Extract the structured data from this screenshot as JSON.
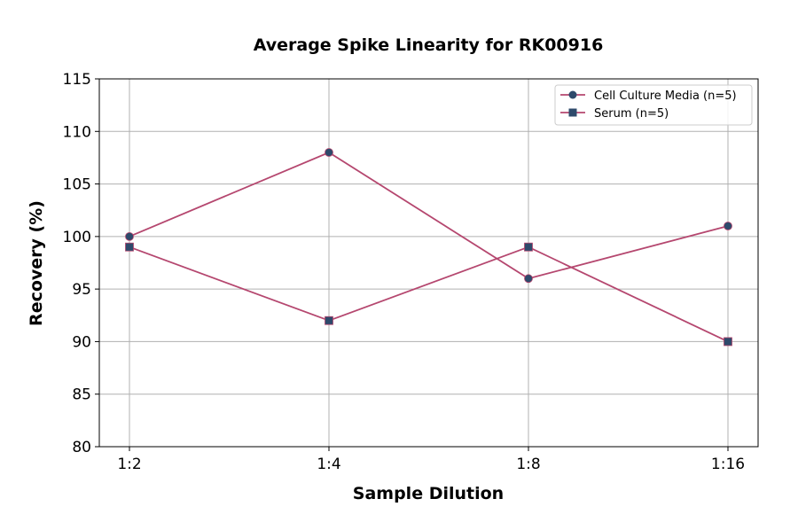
{
  "chart_data": {
    "type": "line",
    "title": "Average Spike Linearity for RK00916",
    "xlabel": "Sample Dilution",
    "ylabel": "Recovery (%)",
    "categories": [
      "1:2",
      "1:4",
      "1:8",
      "1:16"
    ],
    "ylim": [
      80,
      115
    ],
    "yticks": [
      80,
      85,
      90,
      95,
      100,
      105,
      110,
      115
    ],
    "grid": true,
    "legend_position": "top-right",
    "series": [
      {
        "name": "Cell Culture Media (n=5)",
        "marker": "circle",
        "values": [
          100,
          108,
          96,
          101
        ]
      },
      {
        "name": "Serum (n=5)",
        "marker": "square",
        "values": [
          99,
          92,
          99,
          90
        ]
      }
    ],
    "colors": {
      "line": "#b5476f",
      "marker": "#2e4a6b"
    }
  }
}
